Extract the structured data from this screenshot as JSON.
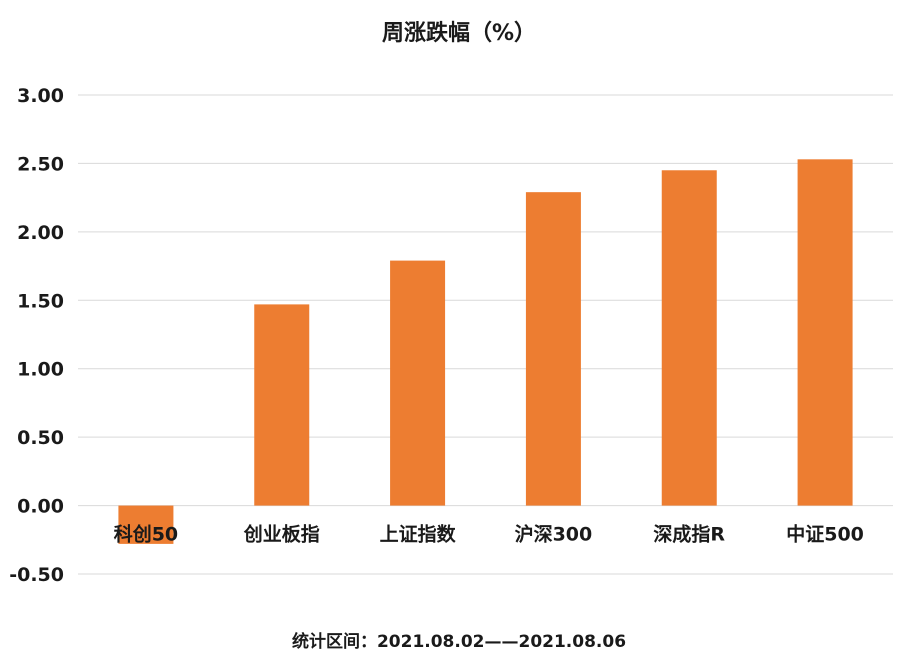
{
  "chart_data": {
    "type": "bar",
    "title": "周涨跌幅（%）",
    "categories": [
      "科创50",
      "创业板指",
      "上证指数",
      "沪深300",
      "深成指R",
      "中证500"
    ],
    "values": [
      -0.28,
      1.47,
      1.79,
      2.29,
      2.45,
      2.53
    ],
    "ylim": [
      -0.5,
      3.0
    ],
    "yticks": [
      "-0.50",
      "0.00",
      "0.50",
      "1.00",
      "1.50",
      "2.00",
      "2.50",
      "3.00"
    ],
    "xlabel": "",
    "ylabel": "",
    "grid": true,
    "legend": "none",
    "bar_color": "#ED7D31",
    "grid_color": "#D9D9D9",
    "footnote": "统计区间：2021.08.02——2021.08.06"
  }
}
